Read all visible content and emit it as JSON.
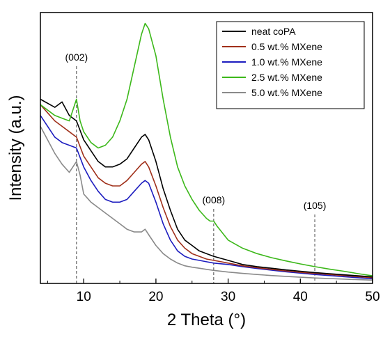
{
  "chart_data": {
    "type": "line",
    "title": "",
    "xlabel": "2 Theta (°)",
    "ylabel": "Intensity (a.u.)",
    "xlim": [
      4,
      50
    ],
    "xticks": [
      10,
      20,
      30,
      40,
      50
    ],
    "xtick_labels": [
      "10",
      "20",
      "30",
      "40",
      "50"
    ],
    "y_ticks_labeled": false,
    "ylim": [
      0,
      100
    ],
    "grid": false,
    "legend_position": "top-right",
    "series": [
      {
        "name": "neat coPA",
        "color": "#000000",
        "x": [
          4,
          6,
          7,
          8,
          9,
          10,
          11,
          12,
          13,
          14,
          15,
          16,
          17,
          18,
          18.5,
          19,
          20,
          21,
          22,
          23,
          24,
          25,
          26,
          27,
          28,
          30,
          32,
          34,
          36,
          38,
          40,
          42,
          44,
          46,
          48,
          50
        ],
        "y": [
          68,
          65,
          67,
          62,
          60,
          53,
          49,
          45,
          43,
          43,
          44,
          46,
          50,
          54,
          55,
          53,
          45,
          35,
          27,
          20,
          16,
          14,
          12,
          11,
          10,
          8.5,
          7,
          6.2,
          5.6,
          5,
          4.5,
          4,
          3.6,
          3.2,
          2.8,
          2.4
        ]
      },
      {
        "name": "0.5 wt.% MXene",
        "color": "#a0301a",
        "x": [
          4,
          6,
          7,
          8,
          9,
          10,
          11,
          12,
          13,
          14,
          15,
          16,
          17,
          18,
          18.5,
          19,
          20,
          21,
          22,
          23,
          24,
          25,
          26,
          27,
          28,
          30,
          32,
          34,
          36,
          38,
          40,
          42,
          44,
          46,
          48,
          50
        ],
        "y": [
          66,
          60,
          58,
          56,
          54,
          47,
          43,
          39,
          37,
          36,
          36,
          38,
          41,
          44,
          45,
          43,
          36,
          28,
          21,
          16,
          13,
          11,
          10,
          9,
          8.5,
          7.5,
          6.5,
          5.8,
          5.2,
          4.6,
          4.1,
          3.7,
          3.3,
          2.9,
          2.5,
          2.1
        ]
      },
      {
        "name": "1.0 wt.% MXene",
        "color": "#1c1cbf",
        "x": [
          4,
          6,
          7,
          8,
          9,
          10,
          11,
          12,
          13,
          14,
          15,
          16,
          17,
          18,
          18.5,
          19,
          20,
          21,
          22,
          23,
          24,
          25,
          26,
          27,
          28,
          30,
          32,
          34,
          36,
          38,
          40,
          42,
          44,
          46,
          48,
          50
        ],
        "y": [
          62,
          54,
          52,
          51,
          50,
          43,
          38,
          34,
          31,
          30,
          30,
          31,
          34,
          37,
          38,
          37,
          30,
          22,
          16,
          12,
          10,
          9,
          8.5,
          8,
          7.5,
          7,
          6.2,
          5.5,
          4.9,
          4.3,
          3.8,
          3.3,
          2.9,
          2.5,
          2.1,
          1.7
        ]
      },
      {
        "name": "2.5 wt.% MXene",
        "color": "#3cb81a",
        "x": [
          4,
          6,
          7,
          8,
          8.5,
          9,
          9.5,
          10,
          11,
          12,
          13,
          14,
          15,
          16,
          17,
          18,
          18.5,
          19,
          20,
          21,
          22,
          23,
          24,
          25,
          26,
          27,
          27.5,
          28,
          28.5,
          30,
          32,
          34,
          36,
          38,
          40,
          42,
          44,
          46,
          48,
          50
        ],
        "y": [
          66,
          62,
          61,
          60,
          64,
          68,
          60,
          56,
          52,
          50,
          51,
          54,
          60,
          68,
          80,
          92,
          96,
          94,
          84,
          68,
          54,
          43,
          36,
          31,
          27,
          24,
          23,
          23,
          21,
          16,
          13,
          11,
          9.5,
          8.3,
          7.2,
          6.2,
          5.3,
          4.5,
          3.6,
          2.8
        ]
      },
      {
        "name": "5.0 wt.% MXene",
        "color": "#8a8a8a",
        "x": [
          4,
          6,
          7,
          8,
          8.5,
          9,
          9.5,
          10,
          11,
          12,
          13,
          14,
          15,
          16,
          17,
          18,
          18.5,
          19,
          20,
          21,
          22,
          23,
          24,
          25,
          26,
          27,
          28,
          30,
          32,
          34,
          36,
          38,
          40,
          42,
          44,
          46,
          48,
          50
        ],
        "y": [
          58,
          48,
          44,
          41,
          43,
          45,
          40,
          33,
          30,
          28,
          26,
          24,
          22,
          20,
          19,
          19,
          20,
          18,
          14,
          11,
          9,
          7.5,
          6.5,
          6,
          5.6,
          5.2,
          4.8,
          4.2,
          3.7,
          3.3,
          2.9,
          2.6,
          2.3,
          2,
          1.8,
          1.6,
          1.4,
          1.2
        ]
      }
    ],
    "annotations": [
      {
        "label": "(002)",
        "x": 9.0
      },
      {
        "label": "(008)",
        "x": 28.0
      },
      {
        "label": "(105)",
        "x": 42.0
      }
    ]
  }
}
